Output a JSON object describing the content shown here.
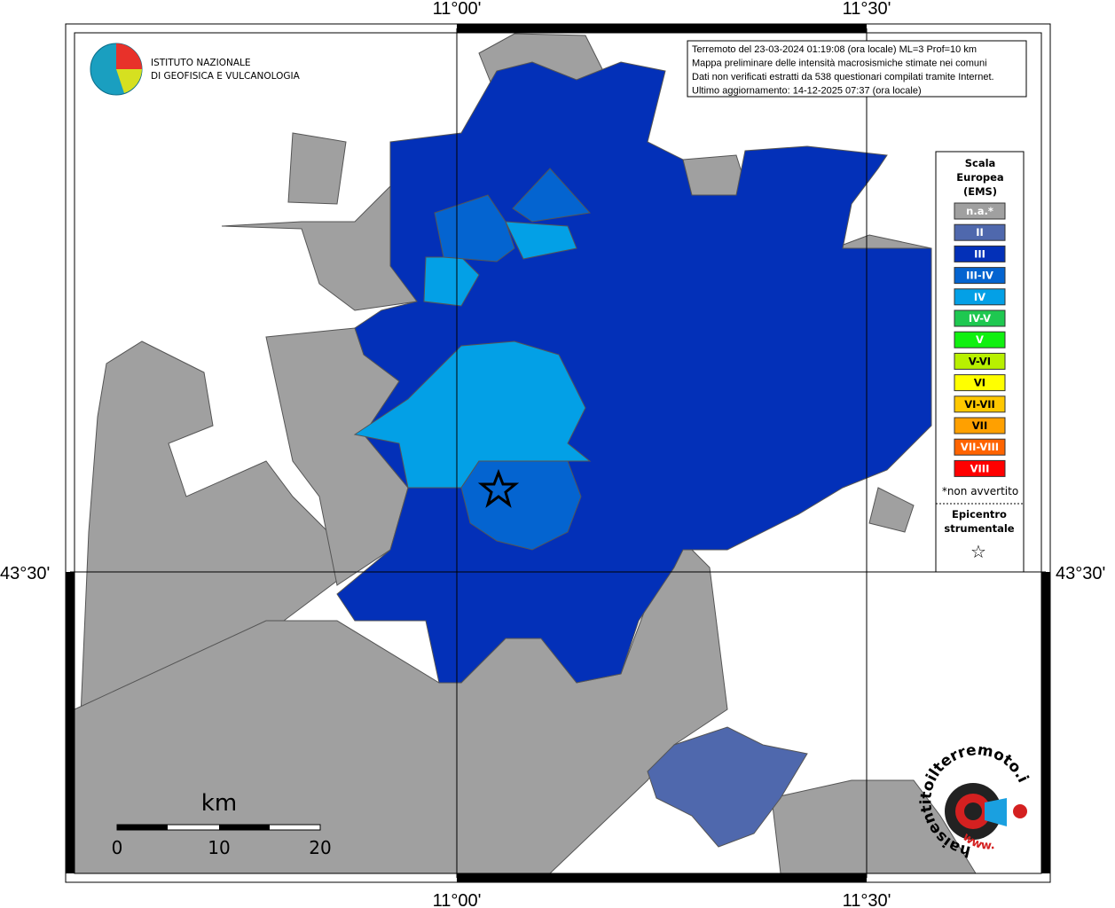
{
  "header": {
    "lon_left": "11°00'",
    "lon_right": "11°30'",
    "lat": "43°30'"
  },
  "logo": {
    "line1": "ISTITUTO NAZIONALE",
    "line2": "DI GEOFISICA E VULCANOLOGIA"
  },
  "info": {
    "lines": [
      "Terremoto del 23-03-2024 01:19:08 (ora locale) ML=3 Prof=10 km",
      "Mappa preliminare delle intensità macrosismiche stimate nei comuni",
      "Dati non verificati estratti da 538 questionari compilati tramite Internet.",
      "Ultimo aggiornamento: 14-12-2025 07:37 (ora locale)"
    ]
  },
  "legend": {
    "title": [
      "Scala",
      "Europea",
      "(EMS)"
    ],
    "items": [
      {
        "label": "n.a.*",
        "color": "#a0a0a0"
      },
      {
        "label": "II",
        "color": "#4f68ad"
      },
      {
        "label": "III",
        "color": "#0330b8"
      },
      {
        "label": "III-IV",
        "color": "#0464d0"
      },
      {
        "label": "IV",
        "color": "#03a0e6"
      },
      {
        "label": "IV-V",
        "color": "#1ec850"
      },
      {
        "label": "V",
        "color": "#10f010"
      },
      {
        "label": "V-VI",
        "color": "#b8f000"
      },
      {
        "label": "VI",
        "color": "#ffff00"
      },
      {
        "label": "VI-VII",
        "color": "#ffc800"
      },
      {
        "label": "VII",
        "color": "#ffa000"
      },
      {
        "label": "VII-VIII",
        "color": "#ff6400"
      },
      {
        "label": "VIII",
        "color": "#ff0000"
      }
    ],
    "note": "*non avvertito",
    "epicenter_title": [
      "Epicentro",
      "strumentale"
    ],
    "epicenter_symbol": "☆"
  },
  "scale": {
    "unit": "km",
    "labels": [
      "0",
      "10",
      "20"
    ]
  },
  "badge": {
    "text": "haisentitoilterremoto.it",
    "prefix": "www."
  }
}
